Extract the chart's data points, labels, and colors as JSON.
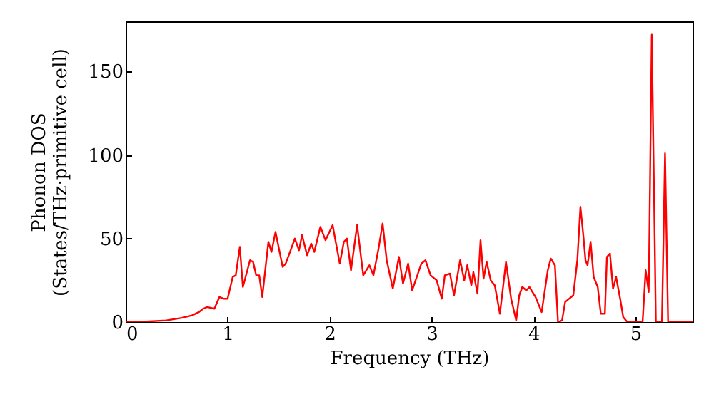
{
  "chart_data": {
    "type": "line",
    "xlabel": "Frequency (THz)",
    "ylabel": "Phonon DOS\n(States/THz·primitive cell)",
    "x": [
      0,
      0.2,
      0.4,
      0.55,
      0.65,
      0.72,
      0.76,
      0.8,
      0.87,
      0.92,
      0.96,
      1.0,
      1.05,
      1.08,
      1.12,
      1.15,
      1.22,
      1.25,
      1.28,
      1.31,
      1.34,
      1.4,
      1.43,
      1.47,
      1.54,
      1.57,
      1.66,
      1.7,
      1.73,
      1.78,
      1.82,
      1.85,
      1.91,
      1.96,
      2.03,
      2.1,
      2.14,
      2.17,
      2.21,
      2.27,
      2.33,
      2.39,
      2.43,
      2.48,
      2.52,
      2.56,
      2.62,
      2.68,
      2.72,
      2.77,
      2.81,
      2.9,
      2.94,
      2.99,
      3.05,
      3.1,
      3.13,
      3.18,
      3.22,
      3.28,
      3.32,
      3.35,
      3.39,
      3.41,
      3.45,
      3.48,
      3.51,
      3.54,
      3.58,
      3.62,
      3.67,
      3.73,
      3.78,
      3.83,
      3.86,
      3.89,
      3.93,
      3.96,
      4.02,
      4.08,
      4.14,
      4.17,
      4.21,
      4.24,
      4.28,
      4.31,
      4.35,
      4.39,
      4.43,
      4.46,
      4.49,
      4.51,
      4.53,
      4.56,
      4.59,
      4.63,
      4.66,
      4.7,
      4.72,
      4.75,
      4.78,
      4.81,
      4.85,
      4.88,
      4.92,
      5.07,
      5.1,
      5.13,
      5.16,
      5.2,
      5.26,
      5.29,
      5.32,
      5.56
    ],
    "series": [
      {
        "color": "#ff0000",
        "values": [
          0,
          0.3,
          1,
          2.5,
          4,
          6,
          8,
          9,
          8,
          15,
          14,
          14,
          27,
          28,
          45,
          21,
          37,
          36,
          28,
          28,
          15,
          48,
          42,
          54,
          33,
          35,
          50,
          43,
          52,
          40,
          47,
          42,
          57,
          49,
          58,
          35,
          48,
          50,
          31,
          58,
          28,
          34,
          28,
          44,
          59,
          37,
          20,
          39,
          23,
          35,
          19,
          35,
          37,
          28,
          25,
          14,
          28,
          29,
          16,
          37,
          25,
          34,
          22,
          30,
          17,
          49,
          26,
          36,
          25,
          22,
          5,
          36,
          14,
          1,
          16,
          21,
          19,
          21,
          15,
          6,
          31,
          38,
          34,
          0,
          1,
          12,
          14,
          16,
          37,
          69,
          51,
          37,
          34,
          48,
          27,
          21,
          5,
          5,
          39,
          41,
          20,
          27,
          14,
          3,
          0,
          0,
          31,
          18,
          172,
          0,
          0,
          101,
          0,
          0
        ]
      }
    ],
    "xlim": [
      0,
      5.56
    ],
    "ylim": [
      0,
      180
    ],
    "xticks": [
      0,
      1,
      2,
      3,
      4,
      5
    ],
    "yticks": [
      0,
      50,
      100,
      150
    ],
    "grid": false
  }
}
